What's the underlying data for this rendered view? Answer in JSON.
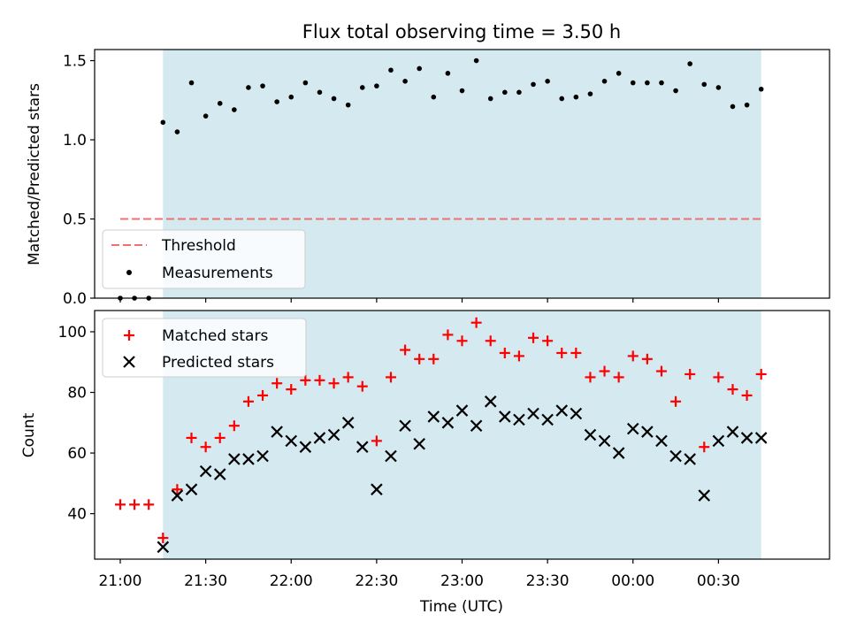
{
  "chart_data": [
    {
      "type": "scatter",
      "title": "Flux total observing time = 3.50 h",
      "ylabel": "Matched/Predicted stars",
      "xlabel": "",
      "xlim": [
        "20:51",
        "01:09"
      ],
      "ylim": [
        0,
        1.57
      ],
      "yticks": [
        0.0,
        0.5,
        1.0,
        1.5
      ],
      "ytick_labels": [
        "0.0",
        "0.5",
        "1.0",
        "1.5"
      ],
      "shaded_span": [
        "21:15",
        "00:45"
      ],
      "shaded_color": "#d4eaf0",
      "threshold": {
        "name": "Threshold",
        "value": 0.5,
        "x_range": [
          "21:00",
          "00:45"
        ],
        "color": "#f07070",
        "style": "dashed"
      },
      "legend_position": "lower-left",
      "series": [
        {
          "name": "Measurements",
          "marker": "dot",
          "color": "#000000",
          "x": [
            "21:00",
            "21:05",
            "21:10",
            "21:15",
            "21:20",
            "21:25",
            "21:30",
            "21:35",
            "21:40",
            "21:45",
            "21:50",
            "21:55",
            "22:00",
            "22:05",
            "22:10",
            "22:15",
            "22:20",
            "22:25",
            "22:30",
            "22:35",
            "22:40",
            "22:45",
            "22:50",
            "22:55",
            "23:00",
            "23:05",
            "23:10",
            "23:15",
            "23:20",
            "23:25",
            "23:30",
            "23:35",
            "23:40",
            "23:45",
            "23:50",
            "23:55",
            "00:00",
            "00:05",
            "00:10",
            "00:15",
            "00:20",
            "00:25",
            "00:30",
            "00:35",
            "00:40",
            "00:45"
          ],
          "y": [
            0,
            0,
            0,
            1.11,
            1.05,
            1.36,
            1.15,
            1.23,
            1.19,
            1.33,
            1.34,
            1.24,
            1.27,
            1.36,
            1.3,
            1.26,
            1.22,
            1.33,
            1.34,
            1.44,
            1.37,
            1.45,
            1.27,
            1.42,
            1.31,
            1.5,
            1.26,
            1.3,
            1.3,
            1.35,
            1.37,
            1.26,
            1.27,
            1.29,
            1.37,
            1.42,
            1.36,
            1.36,
            1.36,
            1.31,
            1.48,
            1.35,
            1.33,
            1.21,
            1.22,
            1.32
          ]
        }
      ]
    },
    {
      "type": "scatter",
      "title": "",
      "ylabel": "Count",
      "xlabel": "Time (UTC)",
      "xlim": [
        "20:51",
        "01:09"
      ],
      "ylim": [
        25,
        107
      ],
      "yticks": [
        40,
        60,
        80,
        100
      ],
      "ytick_labels": [
        "40",
        "60",
        "80",
        "100"
      ],
      "xticks": [
        "21:00",
        "21:30",
        "22:00",
        "22:30",
        "23:00",
        "23:30",
        "00:00",
        "00:30"
      ],
      "xtick_labels": [
        "21:00",
        "21:30",
        "22:00",
        "22:30",
        "23:00",
        "23:30",
        "00:00",
        "00:30"
      ],
      "shaded_span": [
        "21:15",
        "00:45"
      ],
      "shaded_color": "#d4eaf0",
      "legend_position": "upper-left",
      "series": [
        {
          "name": "Matched stars",
          "marker": "plus",
          "color": "#ff0000",
          "x": [
            "21:00",
            "21:05",
            "21:10",
            "21:15",
            "21:20",
            "21:25",
            "21:30",
            "21:35",
            "21:40",
            "21:45",
            "21:50",
            "21:55",
            "22:00",
            "22:05",
            "22:10",
            "22:15",
            "22:20",
            "22:25",
            "22:30",
            "22:35",
            "22:40",
            "22:45",
            "22:50",
            "22:55",
            "23:00",
            "23:05",
            "23:10",
            "23:15",
            "23:20",
            "23:25",
            "23:30",
            "23:35",
            "23:40",
            "23:45",
            "23:50",
            "23:55",
            "00:00",
            "00:05",
            "00:10",
            "00:15",
            "00:20",
            "00:25",
            "00:30",
            "00:35",
            "00:40",
            "00:45"
          ],
          "y": [
            43,
            43,
            43,
            32,
            48,
            65,
            62,
            65,
            69,
            77,
            79,
            83,
            81,
            84,
            84,
            83,
            85,
            82,
            64,
            85,
            94,
            91,
            91,
            99,
            97,
            103,
            97,
            93,
            92,
            98,
            97,
            93,
            93,
            85,
            87,
            85,
            92,
            91,
            87,
            77,
            86,
            62,
            85,
            81,
            79,
            86
          ]
        },
        {
          "name": "Predicted stars",
          "marker": "x",
          "color": "#000000",
          "x": [
            "21:15",
            "21:20",
            "21:25",
            "21:30",
            "21:35",
            "21:40",
            "21:45",
            "21:50",
            "21:55",
            "22:00",
            "22:05",
            "22:10",
            "22:15",
            "22:20",
            "22:25",
            "22:30",
            "22:35",
            "22:40",
            "22:45",
            "22:50",
            "22:55",
            "23:00",
            "23:05",
            "23:10",
            "23:15",
            "23:20",
            "23:25",
            "23:30",
            "23:35",
            "23:40",
            "23:45",
            "23:50",
            "23:55",
            "00:00",
            "00:05",
            "00:10",
            "00:15",
            "00:20",
            "00:25",
            "00:30",
            "00:35",
            "00:40",
            "00:45"
          ],
          "y": [
            29,
            46,
            48,
            54,
            53,
            58,
            58,
            59,
            67,
            64,
            62,
            65,
            66,
            70,
            62,
            48,
            59,
            69,
            63,
            72,
            70,
            74,
            69,
            77,
            72,
            71,
            73,
            71,
            74,
            73,
            66,
            64,
            60,
            68,
            67,
            64,
            59,
            58,
            46,
            64,
            67,
            65,
            65
          ]
        }
      ]
    }
  ]
}
